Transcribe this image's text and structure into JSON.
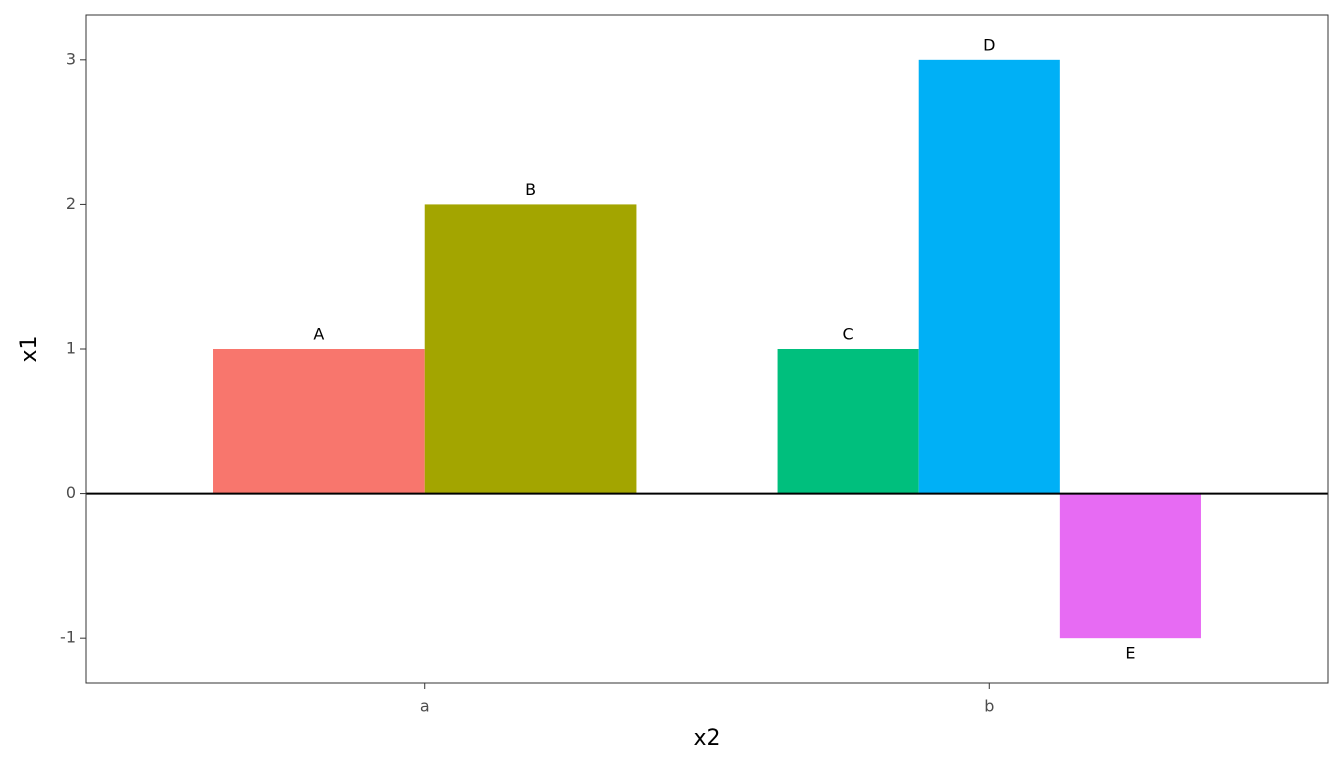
{
  "chart_data": {
    "type": "bar",
    "x_label": "x2",
    "y_label": "x1",
    "categories": [
      "a",
      "b"
    ],
    "series": [
      {
        "name": "A",
        "color": "#f8766d",
        "values": [
          1,
          null
        ]
      },
      {
        "name": "B",
        "color": "#a3a500",
        "values": [
          2,
          null
        ]
      },
      {
        "name": "C",
        "color": "#00bf7d",
        "values": [
          null,
          1
        ]
      },
      {
        "name": "D",
        "color": "#00b0f6",
        "values": [
          null,
          3
        ]
      },
      {
        "name": "E",
        "color": "#e76bf3",
        "values": [
          null,
          -1
        ]
      }
    ],
    "ylim": [
      -1.31,
      3.31
    ],
    "yticks": [
      -1,
      0,
      1,
      2,
      3
    ],
    "grid": false,
    "legend": false
  }
}
